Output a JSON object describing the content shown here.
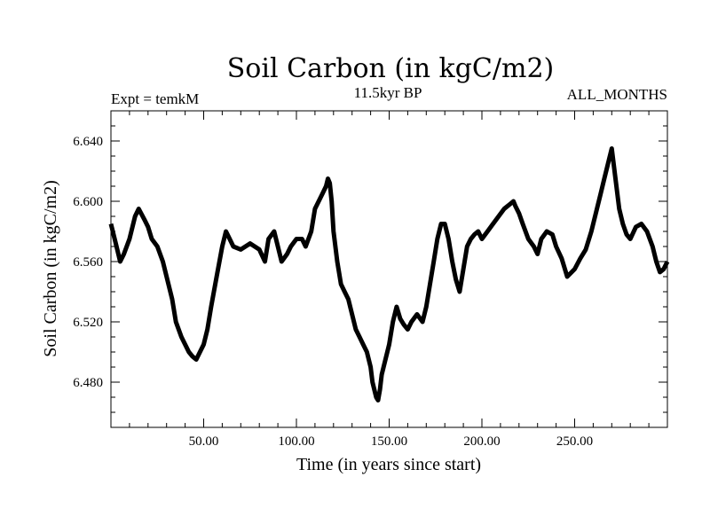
{
  "chart_data": {
    "type": "line",
    "title": "Soil Carbon (in kgC/m2)",
    "left_label": "Expt = temkM",
    "center_label": "11.5kyr BP",
    "right_label": "ALL_MONTHS",
    "xlabel": "Time (in years since start)",
    "ylabel": "Soil Carbon (in kgC/m2)",
    "xlim": [
      0,
      300
    ],
    "ylim": [
      6.45,
      6.66
    ],
    "xticks": [
      50,
      100,
      150,
      200,
      250
    ],
    "xtick_labels": [
      "50.00",
      "100.00",
      "150.00",
      "200.00",
      "250.00"
    ],
    "yticks": [
      6.48,
      6.52,
      6.56,
      6.6,
      6.64
    ],
    "ytick_labels": [
      "6.480",
      "6.520",
      "6.560",
      "6.600",
      "6.640"
    ],
    "series": [
      {
        "name": "Soil Carbon",
        "x": [
          0,
          3,
          5,
          7,
          10,
          13,
          15,
          18,
          20,
          22,
          25,
          28,
          30,
          33,
          35,
          38,
          40,
          42,
          44,
          46,
          48,
          50,
          52,
          54,
          57,
          60,
          62,
          64,
          66,
          70,
          75,
          80,
          83,
          85,
          88,
          90,
          92,
          95,
          97,
          100,
          103,
          105,
          108,
          110,
          112,
          114,
          116,
          117,
          118,
          119,
          120,
          122,
          124,
          126,
          128,
          130,
          132,
          134,
          136,
          138,
          140,
          141,
          142,
          143,
          144,
          145,
          146,
          147,
          148,
          150,
          152,
          154,
          156,
          158,
          160,
          162,
          165,
          168,
          170,
          172,
          174,
          176,
          178,
          180,
          182,
          184,
          186,
          188,
          190,
          192,
          194,
          196,
          198,
          200,
          203,
          206,
          209,
          212,
          215,
          217,
          218,
          220,
          222,
          225,
          228,
          230,
          232,
          235,
          238,
          240,
          243,
          246,
          250,
          253,
          256,
          259,
          262,
          264,
          266,
          268,
          270,
          272,
          274,
          276,
          278,
          280,
          283,
          286,
          289,
          292,
          294,
          296,
          298,
          300
        ],
        "y": [
          6.585,
          6.57,
          6.56,
          6.565,
          6.575,
          6.59,
          6.595,
          6.588,
          6.583,
          6.575,
          6.57,
          6.56,
          6.55,
          6.535,
          6.52,
          6.51,
          6.505,
          6.5,
          6.497,
          6.495,
          6.5,
          6.505,
          6.515,
          6.53,
          6.55,
          6.57,
          6.58,
          6.575,
          6.57,
          6.568,
          6.572,
          6.568,
          6.56,
          6.575,
          6.58,
          6.57,
          6.56,
          6.565,
          6.57,
          6.575,
          6.575,
          6.57,
          6.58,
          6.595,
          6.6,
          6.605,
          6.61,
          6.615,
          6.612,
          6.6,
          6.58,
          6.56,
          6.545,
          6.54,
          6.535,
          6.525,
          6.515,
          6.51,
          6.505,
          6.5,
          6.49,
          6.48,
          6.475,
          6.47,
          6.468,
          6.475,
          6.485,
          6.49,
          6.495,
          6.505,
          6.52,
          6.53,
          6.522,
          6.518,
          6.515,
          6.52,
          6.525,
          6.52,
          6.53,
          6.545,
          6.56,
          6.575,
          6.585,
          6.585,
          6.575,
          6.56,
          6.548,
          6.54,
          6.555,
          6.57,
          6.575,
          6.578,
          6.58,
          6.575,
          6.58,
          6.585,
          6.59,
          6.595,
          6.598,
          6.6,
          6.597,
          6.592,
          6.585,
          6.575,
          6.57,
          6.565,
          6.575,
          6.58,
          6.578,
          6.57,
          6.562,
          6.55,
          6.555,
          6.562,
          6.568,
          6.58,
          6.595,
          6.605,
          6.615,
          6.625,
          6.635,
          6.615,
          6.595,
          6.585,
          6.578,
          6.575,
          6.583,
          6.585,
          6.58,
          6.57,
          6.56,
          6.553,
          6.555,
          6.56
        ]
      }
    ]
  }
}
